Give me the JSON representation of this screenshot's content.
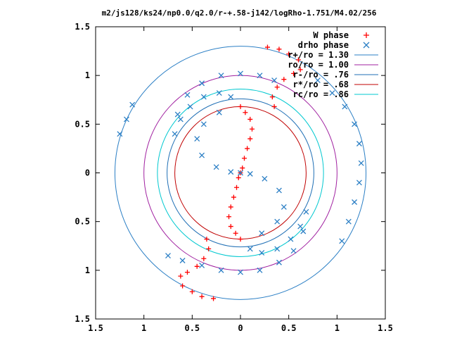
{
  "chart_data": {
    "type": "scatter",
    "title": "m2/js128/ks24/np0.0/q2.0/r-+.58-j142/logRho-1.751/M4.02/256",
    "xlim": [
      -1.5,
      1.5
    ],
    "ylim": [
      -1.5,
      1.5
    ],
    "x_ticks": [
      "1.5",
      "1",
      "0.5",
      "0",
      "0.5",
      "1",
      "1.5"
    ],
    "y_ticks": [
      "1.5",
      "1",
      "0.5",
      "0",
      "0.5",
      "1",
      "1.5"
    ],
    "grid": false,
    "legend_position": "top-right",
    "circles": [
      {
        "name": "r+/ro = 1.30",
        "r": 1.3,
        "color": "#2b7fc5"
      },
      {
        "name": "ro/ro = 1.00",
        "r": 1.0,
        "color": "#a020a0"
      },
      {
        "name": "r-/ro = .76",
        "r": 0.76,
        "color": "#1f6fb5"
      },
      {
        "name": "r*/ro = .68",
        "r": 0.68,
        "color": "#c00000"
      },
      {
        "name": "rc/ro = .86",
        "r": 0.86,
        "color": "#00c8d0"
      }
    ],
    "series": [
      {
        "name": "W phase",
        "marker": "plus",
        "color": "#ff0000",
        "points": [
          [
            0.0,
            -0.68
          ],
          [
            -0.05,
            -0.62
          ],
          [
            -0.1,
            -0.55
          ],
          [
            -0.12,
            -0.45
          ],
          [
            -0.1,
            -0.35
          ],
          [
            -0.07,
            -0.25
          ],
          [
            -0.04,
            -0.15
          ],
          [
            -0.02,
            -0.05
          ],
          [
            0.0,
            0.0
          ],
          [
            0.02,
            0.05
          ],
          [
            0.04,
            0.15
          ],
          [
            0.07,
            0.25
          ],
          [
            0.1,
            0.35
          ],
          [
            0.12,
            0.45
          ],
          [
            0.1,
            0.55
          ],
          [
            0.05,
            0.62
          ],
          [
            0.0,
            0.68
          ],
          [
            0.35,
            0.68
          ],
          [
            0.33,
            0.78
          ],
          [
            0.38,
            0.88
          ],
          [
            0.45,
            0.96
          ],
          [
            0.55,
            1.02
          ],
          [
            0.62,
            1.06
          ],
          [
            0.6,
            1.16
          ],
          [
            0.5,
            1.22
          ],
          [
            0.4,
            1.27
          ],
          [
            0.28,
            1.29
          ],
          [
            -0.35,
            -0.68
          ],
          [
            -0.33,
            -0.78
          ],
          [
            -0.38,
            -0.88
          ],
          [
            -0.45,
            -0.96
          ],
          [
            -0.55,
            -1.02
          ],
          [
            -0.62,
            -1.06
          ],
          [
            -0.6,
            -1.16
          ],
          [
            -0.5,
            -1.22
          ],
          [
            -0.4,
            -1.27
          ],
          [
            -0.28,
            -1.29
          ]
        ]
      },
      {
        "name": "drho phase",
        "marker": "x",
        "color": "#2b7fc5",
        "points": [
          [
            -0.68,
            0.4
          ],
          [
            -0.62,
            0.55
          ],
          [
            -0.52,
            0.68
          ],
          [
            -0.38,
            0.78
          ],
          [
            -0.22,
            0.82
          ],
          [
            -0.1,
            0.78
          ],
          [
            -0.22,
            0.62
          ],
          [
            -0.38,
            0.5
          ],
          [
            -0.45,
            0.35
          ],
          [
            -0.4,
            0.18
          ],
          [
            -0.25,
            0.06
          ],
          [
            -0.1,
            0.01
          ],
          [
            0.0,
            0.0
          ],
          [
            0.1,
            -0.01
          ],
          [
            0.25,
            -0.06
          ],
          [
            0.4,
            -0.18
          ],
          [
            0.45,
            -0.35
          ],
          [
            0.38,
            -0.5
          ],
          [
            0.22,
            -0.62
          ],
          [
            0.1,
            -0.78
          ],
          [
            0.22,
            -0.82
          ],
          [
            0.38,
            -0.78
          ],
          [
            0.52,
            -0.68
          ],
          [
            0.62,
            -0.55
          ],
          [
            0.68,
            -0.4
          ],
          [
            -0.65,
            0.6
          ],
          [
            -0.55,
            0.8
          ],
          [
            -0.4,
            0.92
          ],
          [
            -0.2,
            1.0
          ],
          [
            0.0,
            1.02
          ],
          [
            0.2,
            1.0
          ],
          [
            0.35,
            0.95
          ],
          [
            -1.25,
            0.4
          ],
          [
            -1.18,
            0.55
          ],
          [
            -1.12,
            0.7
          ],
          [
            0.65,
            -0.6
          ],
          [
            0.55,
            -0.8
          ],
          [
            0.4,
            -0.92
          ],
          [
            0.2,
            -1.0
          ],
          [
            0.0,
            -1.02
          ],
          [
            -0.2,
            -1.0
          ],
          [
            -0.4,
            -0.95
          ],
          [
            -0.6,
            -0.9
          ],
          [
            -0.75,
            -0.85
          ],
          [
            0.8,
            0.95
          ],
          [
            0.95,
            0.82
          ],
          [
            1.08,
            0.68
          ],
          [
            1.18,
            0.5
          ],
          [
            1.23,
            0.3
          ],
          [
            1.25,
            0.1
          ],
          [
            1.23,
            -0.1
          ],
          [
            1.18,
            -0.3
          ],
          [
            1.12,
            -0.5
          ],
          [
            1.05,
            -0.7
          ]
        ]
      }
    ]
  }
}
